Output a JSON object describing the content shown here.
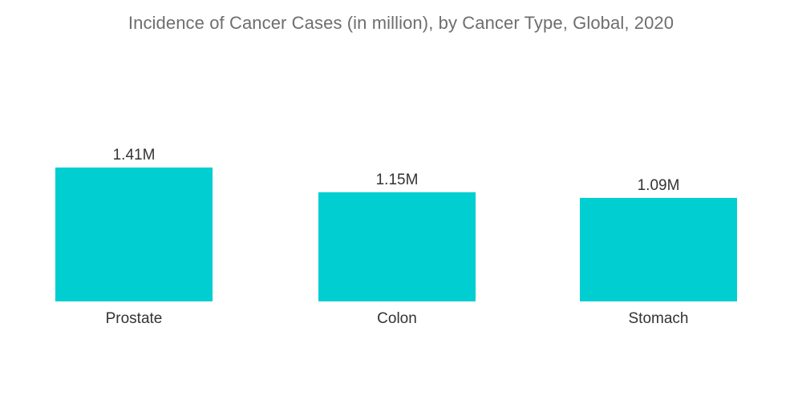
{
  "chart_data": {
    "type": "bar",
    "title": "Incidence of Cancer Cases (in million), by Cancer Type, Global, 2020",
    "xlabel": "",
    "ylabel": "",
    "categories": [
      "Prostate",
      "Colon",
      "Stomach"
    ],
    "values": [
      1.41,
      1.15,
      1.09
    ],
    "value_labels": [
      "1.41M",
      "1.15M",
      "1.09M"
    ],
    "ylim": [
      0,
      1.41
    ],
    "grid": false,
    "legend": "none",
    "bar_color": "#00CED1"
  }
}
